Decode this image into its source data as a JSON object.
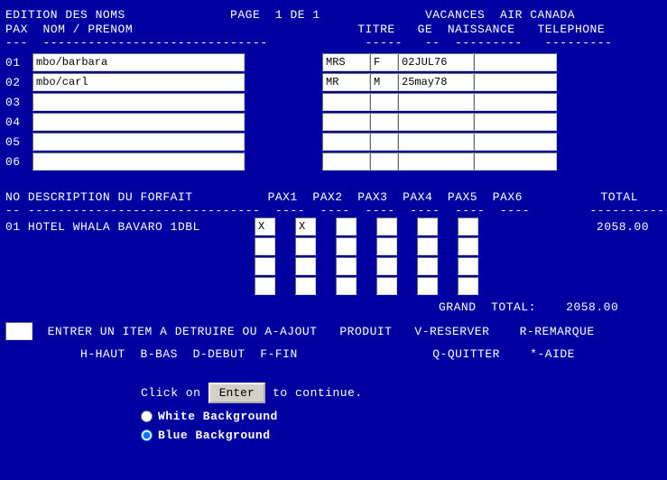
{
  "header": {
    "title_left": "EDITION DES NOMS",
    "page_label": "PAGE",
    "page_current": "1",
    "page_of": "DE",
    "page_total": "1",
    "brand_left": "VACANCES",
    "brand_right": "AIR CANADA",
    "col_pax": "PAX",
    "col_name": "NOM / PRENOM",
    "col_titre": "TITRE",
    "col_ge": "GE",
    "col_naissance": "NAISSANCE",
    "col_telephone": "TELEPHONE"
  },
  "pax_rows": [
    {
      "num": "01",
      "name": "mbo/barbara",
      "titre": "MRS",
      "ge": "F",
      "nais": "02JUL76",
      "tel": ""
    },
    {
      "num": "02",
      "name": "mbo/carl",
      "titre": "MR",
      "ge": "M",
      "nais": "25may78",
      "tel": ""
    },
    {
      "num": "03",
      "name": "",
      "titre": "",
      "ge": "",
      "nais": "",
      "tel": ""
    },
    {
      "num": "04",
      "name": "",
      "titre": "",
      "ge": "",
      "nais": "",
      "tel": ""
    },
    {
      "num": "05",
      "name": "",
      "titre": "",
      "ge": "",
      "nais": "",
      "tel": ""
    },
    {
      "num": "06",
      "name": "",
      "titre": "",
      "ge": "",
      "nais": "",
      "tel": ""
    }
  ],
  "forfait": {
    "hdr_no": "NO",
    "hdr_desc": "DESCRIPTION DU FORFAIT",
    "hdr_pax1": "PAX1",
    "hdr_pax2": "PAX2",
    "hdr_pax3": "PAX3",
    "hdr_pax4": "PAX4",
    "hdr_pax5": "PAX5",
    "hdr_pax6": "PAX6",
    "hdr_total": "TOTAL",
    "rows": [
      {
        "no": "01",
        "desc": "HOTEL WHALA BAVARO     1DBL",
        "p1": "X",
        "p2": "X",
        "p3": "",
        "p4": "",
        "p5": "",
        "p6": "",
        "total": "2058.00"
      },
      {
        "no": "",
        "desc": "",
        "p1": "",
        "p2": "",
        "p3": "",
        "p4": "",
        "p5": "",
        "p6": "",
        "total": ""
      },
      {
        "no": "",
        "desc": "",
        "p1": "",
        "p2": "",
        "p3": "",
        "p4": "",
        "p5": "",
        "p6": "",
        "total": ""
      },
      {
        "no": "",
        "desc": "",
        "p1": "",
        "p2": "",
        "p3": "",
        "p4": "",
        "p5": "",
        "p6": "",
        "total": ""
      }
    ],
    "grand_label": "GRAND  TOTAL:",
    "grand_total": "2058.00"
  },
  "commands": {
    "line1_a": "ENTRER UN ITEM A DETRUIRE OU",
    "a_ajout": "A-AJOUT",
    "produit": "PRODUIT",
    "v_reserver": "V-RESERVER",
    "r_remarque": "R-REMARQUE",
    "h_haut": "H-HAUT",
    "b_bas": "B-BAS",
    "d_debut": "D-DEBUT",
    "f_fin": "F-FIN",
    "q_quitter": "Q-QUITTER",
    "star_aide": "*-AIDE"
  },
  "footer": {
    "click_on": "Click on",
    "enter": "Enter",
    "to_continue": "to continue.",
    "white_bg": "White Background",
    "blue_bg": "Blue Background",
    "selected": "blue"
  }
}
